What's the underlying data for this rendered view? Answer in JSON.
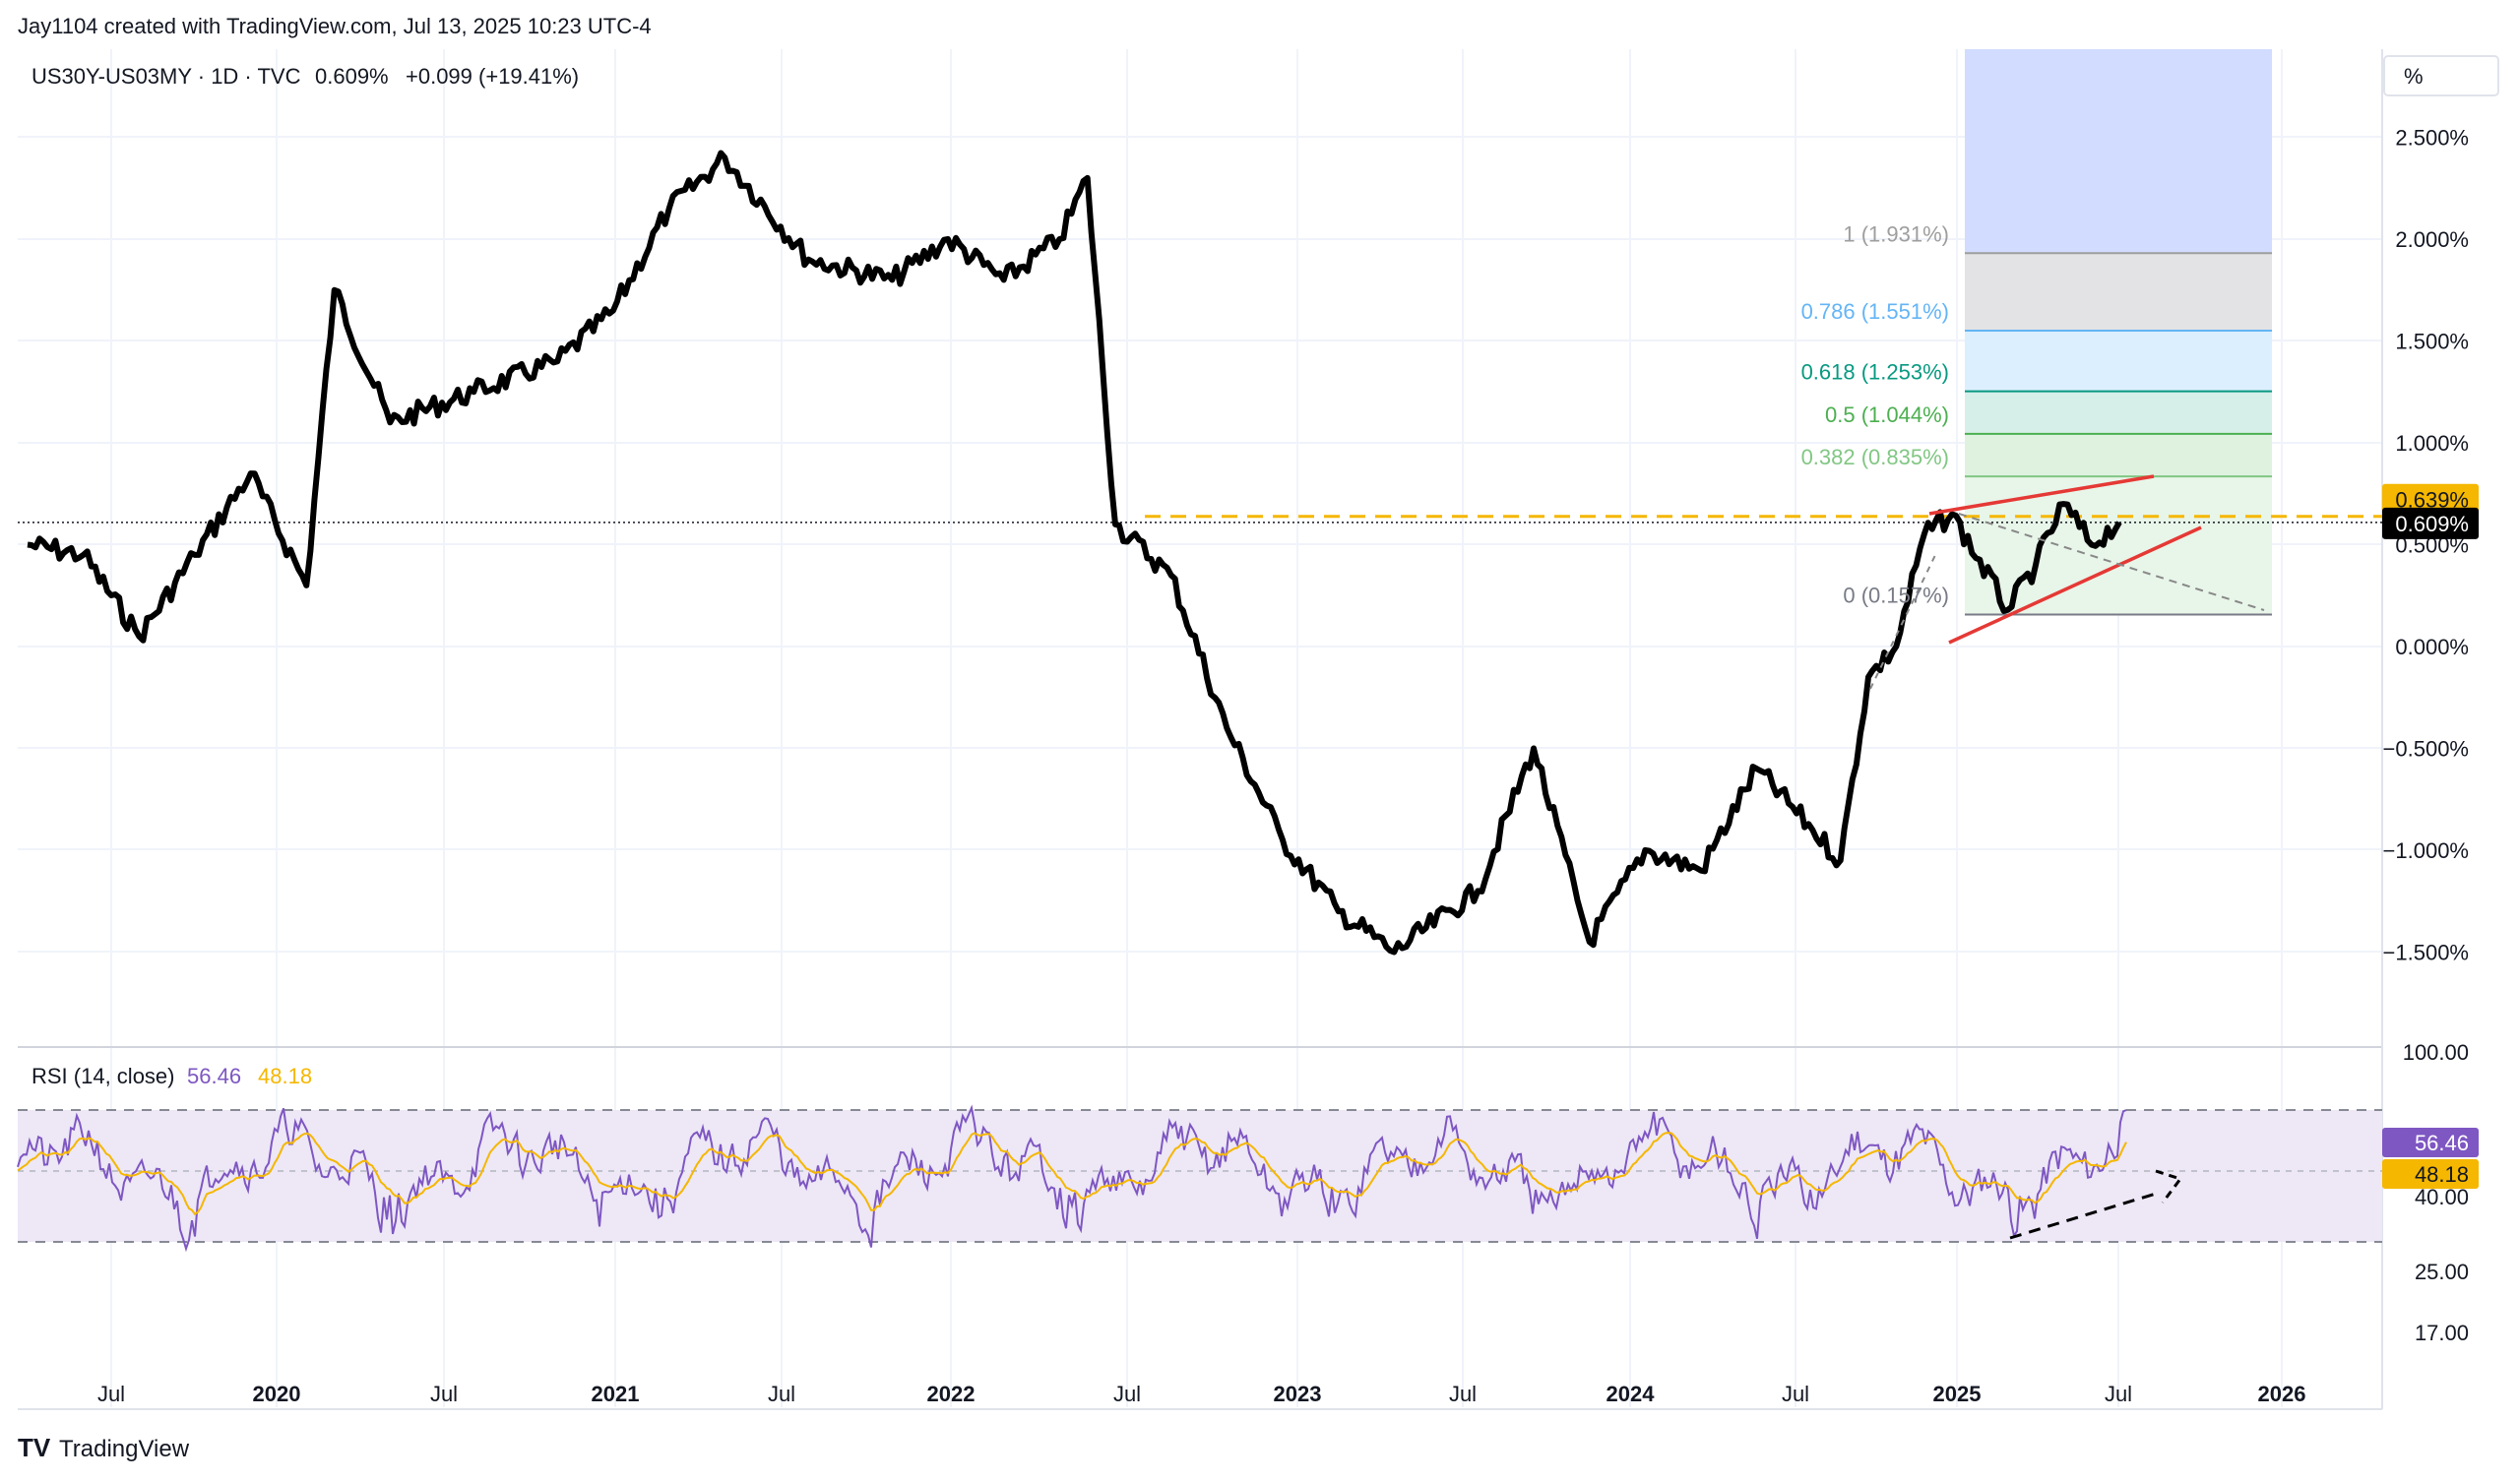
{
  "header": {
    "credit": "Jay1104 created with TradingView.com, Jul 13, 2025 10:23 UTC-4"
  },
  "legend": {
    "symbol": "US30Y-US03MY · 1D · TVC",
    "last": "0.609%",
    "change": "+0.099 (+19.41%)"
  },
  "price_scale": {
    "unit": "%",
    "ticks": [
      "2.500%",
      "2.000%",
      "1.500%",
      "1.000%",
      "0.500%",
      "0.000%",
      "−0.500%",
      "−1.000%",
      "−1.500%"
    ],
    "badge_last": "0.609%",
    "badge_target": "0.639%"
  },
  "time_axis": {
    "labels": [
      "Jul",
      "2020",
      "Jul",
      "2021",
      "Jul",
      "2022",
      "Jul",
      "2023",
      "Jul",
      "2024",
      "Jul",
      "2025",
      "Jul",
      "2026"
    ]
  },
  "fib": {
    "levels": [
      {
        "label": "1 (1.931%)",
        "value": 1.931,
        "color": "#9e9e9e"
      },
      {
        "label": "0.786 (1.551%)",
        "value": 1.551,
        "color": "#64b5f6"
      },
      {
        "label": "0.618 (1.253%)",
        "value": 1.253,
        "color": "#089981"
      },
      {
        "label": "0.5 (1.044%)",
        "value": 1.044,
        "color": "#4caf50"
      },
      {
        "label": "0.382 (0.835%)",
        "value": 0.835,
        "color": "#81c784"
      },
      {
        "label": "0 (0.157%)",
        "value": 0.157,
        "color": "#787b86"
      }
    ]
  },
  "rsi": {
    "title": "RSI (14, close)",
    "value": "56.46",
    "ma": "48.18",
    "ticks": [
      "100.00",
      "40.00",
      "25.00",
      "17.00"
    ],
    "badge_value": "56.46",
    "badge_ma": "48.18",
    "band_upper": 70,
    "band_lower": 30,
    "mid": 50
  },
  "footer": {
    "brand": "TradingView"
  },
  "colors": {
    "price_line": "#000000",
    "rsi_line": "#7e57c2",
    "rsi_ma": "#f5b700",
    "trend": "#e53935",
    "target": "#f5b700",
    "rsi_band": "#ede7f6"
  },
  "chart_data": {
    "type": "line",
    "title": "US30Y-US03MY · 1D · TVC",
    "ylabel": "%",
    "ylim": [
      -1.75,
      2.65
    ],
    "series": [
      {
        "name": "US30Y-US03MY",
        "x": [
          "2019-04",
          "2019-06",
          "2019-08",
          "2019-10",
          "2019-12",
          "2020-02",
          "2020-03",
          "2020-05",
          "2020-08",
          "2020-11",
          "2021-01",
          "2021-03",
          "2021-05",
          "2021-08",
          "2021-11",
          "2022-01",
          "2022-03",
          "2022-05",
          "2022-06",
          "2022-07",
          "2022-09",
          "2022-11",
          "2023-01",
          "2023-03",
          "2023-05",
          "2023-08",
          "2023-10",
          "2023-12",
          "2024-02",
          "2024-04",
          "2024-06",
          "2024-08",
          "2024-09",
          "2024-10",
          "2024-11",
          "2024-12",
          "2025-01",
          "2025-03",
          "2025-04",
          "2025-05",
          "2025-06",
          "2025-07"
        ],
        "values": [
          0.5,
          0.45,
          0.05,
          0.45,
          0.85,
          0.3,
          1.75,
          1.1,
          1.25,
          1.4,
          1.65,
          2.15,
          2.4,
          1.9,
          1.8,
          2.0,
          1.8,
          2.0,
          2.3,
          0.6,
          0.35,
          -0.4,
          -0.95,
          -1.3,
          -1.5,
          -1.2,
          -0.5,
          -1.45,
          -1.0,
          -1.1,
          -0.6,
          -0.9,
          -1.05,
          -0.15,
          0.0,
          0.55,
          0.65,
          0.18,
          0.4,
          0.7,
          0.5,
          0.609
        ]
      }
    ],
    "rsi": {
      "name": "RSI (14, close)",
      "last": 56.46,
      "ma_last": 48.18,
      "bands": [
        70,
        30
      ]
    },
    "fib_levels": [
      1.931,
      1.551,
      1.253,
      1.044,
      0.835,
      0.157
    ],
    "target_line": 0.639
  }
}
